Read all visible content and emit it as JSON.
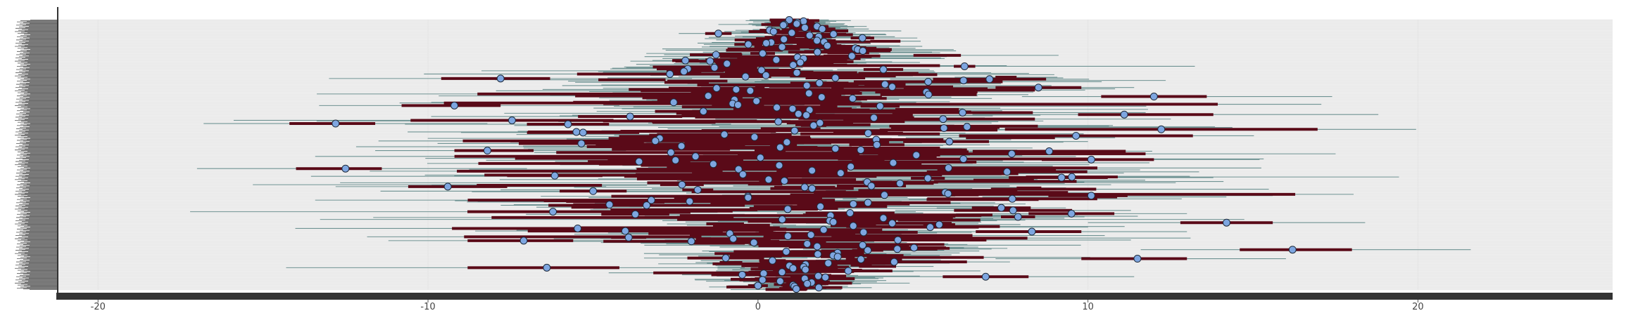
{
  "chart_data": {
    "type": "forest",
    "title": "",
    "xlabel": "",
    "ylabel": "",
    "xlim": [
      -21.2,
      25.9
    ],
    "x_ticks": [
      -20,
      -10,
      0,
      10,
      20
    ],
    "x_tick_labels": [
      "-20",
      "-10",
      "0",
      "10",
      "20"
    ],
    "grid": true,
    "legend": "none",
    "n_rows": 420,
    "y_tick_labels_note": "",
    "colors": {
      "panel": "#f0f0f0",
      "outer_interval": "#6f9393",
      "inner_interval": "#5a0a18",
      "point_fill": "#7ea6e0",
      "point_stroke": "#1e2a3a",
      "axis": "#333333",
      "grid": "#e0e0e0"
    },
    "sample_points": [
      {
        "row": 1,
        "estimate": 0.8,
        "inner": [
          0.1,
          1.5
        ],
        "outer": [
          -1.2,
          2.6
        ]
      },
      {
        "row": 2,
        "estimate": -1.2,
        "inner": [
          -1.6,
          -0.8
        ],
        "outer": [
          -2.4,
          0.2
        ]
      },
      {
        "row": 3,
        "estimate": 0.4,
        "inner": [
          -0.4,
          1.2
        ],
        "outer": [
          -1.4,
          2.0
        ]
      },
      {
        "row": 4,
        "estimate": 1.8,
        "inner": [
          1.4,
          2.4
        ],
        "outer": [
          0.6,
          3.0
        ]
      },
      {
        "row": 5,
        "estimate": -2.2,
        "inner": [
          -2.6,
          -1.8
        ],
        "outer": [
          -3.2,
          -1.2
        ]
      },
      {
        "row": 6,
        "estimate": 3.8,
        "inner": [
          3.2,
          4.4
        ],
        "outer": [
          2.4,
          5.2
        ]
      },
      {
        "row": 7,
        "estimate": -7.8,
        "inner": [
          -9.6,
          -6.3
        ],
        "outer": [
          -13.0,
          -2.0
        ]
      },
      {
        "row": 8,
        "estimate": 8.5,
        "inner": [
          7.2,
          9.8
        ],
        "outer": [
          4.5,
          11.4
        ]
      },
      {
        "row": 9,
        "estimate": 12.0,
        "inner": [
          10.4,
          13.6
        ],
        "outer": [
          8.0,
          17.4
        ]
      },
      {
        "row": 10,
        "estimate": -9.2,
        "inner": [
          -10.8,
          -7.8
        ],
        "outer": [
          -13.3,
          -4.2
        ]
      },
      {
        "row": 11,
        "estimate": 11.1,
        "inner": [
          9.7,
          13.8
        ],
        "outer": [
          6.5,
          18.8
        ]
      },
      {
        "row": 12,
        "estimate": -12.8,
        "inner": [
          -14.2,
          -11.6
        ],
        "outer": [
          -16.8,
          -8.2
        ]
      },
      {
        "row": 13,
        "estimate": -5.3,
        "inner": [
          -7.0,
          -3.6
        ],
        "outer": [
          -9.0,
          -1.0
        ]
      },
      {
        "row": 14,
        "estimate": 5.8,
        "inner": [
          4.4,
          7.0
        ],
        "outer": [
          2.4,
          10.0
        ]
      },
      {
        "row": 15,
        "estimate": -8.2,
        "inner": [
          -9.2,
          -6.8
        ],
        "outer": [
          -11.6,
          -4.0
        ]
      },
      {
        "row": 16,
        "estimate": 10.1,
        "inner": [
          8.6,
          12.0
        ],
        "outer": [
          5.4,
          15.2
        ]
      },
      {
        "row": 17,
        "estimate": -12.5,
        "inner": [
          -14.0,
          -11.4
        ],
        "outer": [
          -17.0,
          -7.0
        ]
      },
      {
        "row": 18,
        "estimate": 9.2,
        "inner": [
          7.6,
          10.6
        ],
        "outer": [
          5.2,
          13.8
        ]
      },
      {
        "row": 19,
        "estimate": -9.4,
        "inner": [
          -10.6,
          -7.6
        ],
        "outer": [
          -12.8,
          -4.6
        ]
      },
      {
        "row": 20,
        "estimate": 10.1,
        "inner": [
          8.8,
          11.2
        ],
        "outer": [
          6.4,
          15.6
        ]
      },
      {
        "row": 21,
        "estimate": -4.5,
        "inner": [
          -5.6,
          -3.4
        ],
        "outer": [
          -7.4,
          -1.6
        ]
      },
      {
        "row": 22,
        "estimate": 9.5,
        "inner": [
          8.2,
          10.8
        ],
        "outer": [
          6.0,
          13.0
        ]
      },
      {
        "row": 23,
        "estimate": 14.2,
        "inner": [
          12.8,
          15.6
        ],
        "outer": [
          10.0,
          18.4
        ]
      },
      {
        "row": 24,
        "estimate": 8.3,
        "inner": [
          6.6,
          9.8
        ],
        "outer": [
          3.8,
          13.0
        ]
      },
      {
        "row": 25,
        "estimate": -7.1,
        "inner": [
          -8.8,
          -5.6
        ],
        "outer": [
          -11.2,
          -2.8
        ]
      },
      {
        "row": 26,
        "estimate": 16.2,
        "inner": [
          14.6,
          18.0
        ],
        "outer": [
          11.6,
          21.6
        ]
      },
      {
        "row": 27,
        "estimate": 11.5,
        "inner": [
          9.8,
          13.0
        ],
        "outer": [
          7.2,
          16.0
        ]
      },
      {
        "row": 28,
        "estimate": -6.4,
        "inner": [
          -8.8,
          -4.2
        ],
        "outer": [
          -14.3,
          -0.4
        ]
      },
      {
        "row": 29,
        "estimate": 6.9,
        "inner": [
          5.6,
          8.2
        ],
        "outer": [
          2.6,
          11.4
        ]
      },
      {
        "row": 30,
        "estimate": 0.0,
        "inner": [
          -0.3,
          0.3
        ],
        "outer": [
          -0.9,
          0.9
        ]
      }
    ]
  }
}
